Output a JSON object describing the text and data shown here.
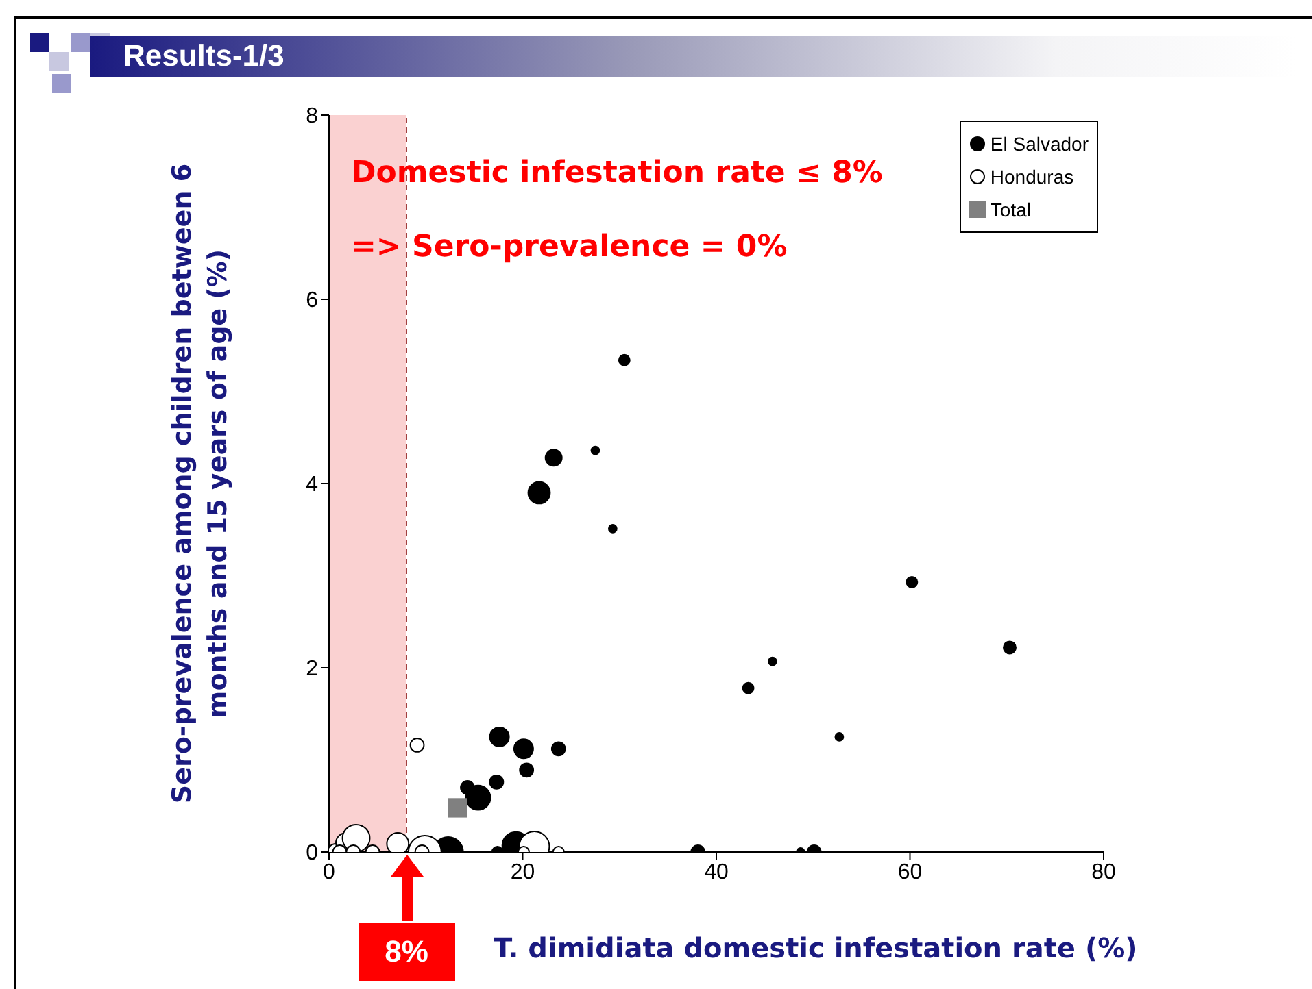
{
  "chart_data": {
    "type": "bubble",
    "title": "Results-1/3",
    "xlabel": "T. dimidiata domestic infestation rate (%)",
    "ylabel": "Sero-prevalence among children between 6 months and 15 years of age (%)",
    "xlim": [
      0,
      80
    ],
    "xticks": [
      0,
      20,
      40,
      60,
      80
    ],
    "ylim": [
      0,
      8
    ],
    "yticks": [
      0,
      2,
      4,
      6,
      8
    ],
    "legend": "top right",
    "annotations": [
      "Domestic infestation rate ≤ 8%",
      "=> Sero-prevalence = 0%"
    ],
    "bands": [
      {
        "axis": "x",
        "from": 0,
        "to": 8,
        "color": "#f9c6c6"
      }
    ],
    "ref_lines": [
      {
        "axis": "x",
        "value": 8,
        "label": "8%",
        "color": "#a04040",
        "line_style": "dashed"
      }
    ],
    "series": [
      {
        "name": "El Salvador",
        "color": "#000000",
        "x": [
          30.5,
          23.2,
          27.5,
          21.7,
          29.3,
          60.2,
          70.3,
          45.8,
          43.3,
          52.7,
          17.6,
          20.1,
          23.7,
          20.4,
          17.3,
          14.3,
          15.4,
          12.3,
          17.4,
          19.3,
          38.1,
          48.7,
          50.1
        ],
        "values": [
          5.34,
          4.28,
          4.36,
          3.9,
          3.51,
          2.93,
          2.22,
          2.07,
          1.78,
          1.25,
          1.25,
          1.12,
          1.12,
          0.89,
          0.76,
          0.7,
          0.59,
          0,
          0,
          0.07,
          0,
          0,
          0
        ],
        "sizes": [
          0.11,
          0.25,
          0.06,
          0.44,
          0.06,
          0.11,
          0.14,
          0.06,
          0.11,
          0.06,
          0.34,
          0.34,
          0.17,
          0.17,
          0.17,
          0.17,
          0.56,
          0.84,
          0.11,
          0.69,
          0.17,
          0.06,
          0.17
        ]
      },
      {
        "name": "Honduras",
        "color": "#ffffff",
        "x": [
          9.1,
          0.7,
          1.7,
          2.8,
          1.1,
          2.5,
          4.5,
          7.1,
          9.9,
          9.6,
          21.2,
          20.1,
          23.7
        ],
        "values": [
          1.16,
          0,
          0.1,
          0.15,
          0,
          0,
          0,
          0.09,
          0,
          0,
          0.06,
          0,
          0
        ],
        "sizes": [
          0.17,
          0.25,
          0.34,
          0.69,
          0.17,
          0.17,
          0.17,
          0.44,
          1,
          0.17,
          0.84,
          0.11,
          0.11
        ]
      },
      {
        "name": "Total",
        "type": "scatter",
        "marker": "square",
        "color": "#808080",
        "x": [
          13.3
        ],
        "values": [
          0.48
        ]
      }
    ]
  }
}
